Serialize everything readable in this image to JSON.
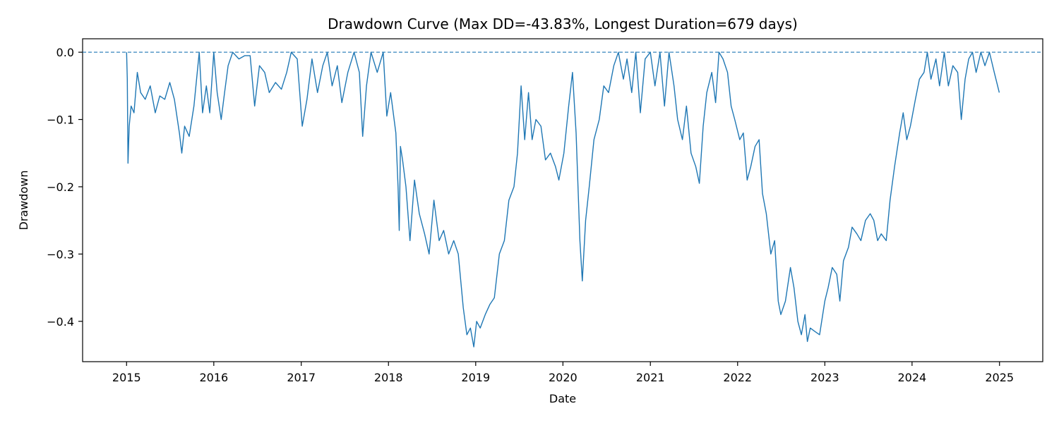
{
  "chart_data": {
    "type": "line",
    "title": "Drawdown Curve (Max DD=-43.83%, Longest Duration=679 days)",
    "xlabel": "Date",
    "ylabel": "Drawdown",
    "xlim": [
      "2014-07-01",
      "2025-07-01"
    ],
    "ylim": [
      -0.46,
      0.02
    ],
    "x_ticks": [
      "2015",
      "2016",
      "2017",
      "2018",
      "2019",
      "2020",
      "2021",
      "2022",
      "2023",
      "2024",
      "2025"
    ],
    "y_ticks": [
      "0.0",
      "−0.1",
      "−0.2",
      "−0.3",
      "−0.4"
    ],
    "y_tick_values": [
      0.0,
      -0.1,
      -0.2,
      -0.3,
      -0.4
    ],
    "grid": false,
    "line_color": "#1f77b4",
    "reference_line": {
      "y": 0.0,
      "style": "dashed",
      "color": "#1f77b4"
    },
    "series": [
      {
        "points": [
          [
            "2015-01-01",
            0.0
          ],
          [
            "2015-01-04",
            -0.04
          ],
          [
            "2015-01-07",
            -0.165
          ],
          [
            "2015-01-12",
            -0.11
          ],
          [
            "2015-01-20",
            -0.08
          ],
          [
            "2015-02-01",
            -0.09
          ],
          [
            "2015-02-15",
            -0.03
          ],
          [
            "2015-03-01",
            -0.06
          ],
          [
            "2015-03-20",
            -0.07
          ],
          [
            "2015-04-10",
            -0.05
          ],
          [
            "2015-05-01",
            -0.09
          ],
          [
            "2015-05-20",
            -0.065
          ],
          [
            "2015-06-10",
            -0.07
          ],
          [
            "2015-07-01",
            -0.045
          ],
          [
            "2015-07-20",
            -0.07
          ],
          [
            "2015-08-10",
            -0.12
          ],
          [
            "2015-08-20",
            -0.15
          ],
          [
            "2015-09-01",
            -0.11
          ],
          [
            "2015-09-20",
            -0.125
          ],
          [
            "2015-10-10",
            -0.08
          ],
          [
            "2015-11-01",
            0.0
          ],
          [
            "2015-11-15",
            -0.09
          ],
          [
            "2015-12-01",
            -0.05
          ],
          [
            "2015-12-15",
            -0.09
          ],
          [
            "2016-01-01",
            0.0
          ],
          [
            "2016-01-15",
            -0.06
          ],
          [
            "2016-02-01",
            -0.1
          ],
          [
            "2016-02-15",
            -0.06
          ],
          [
            "2016-03-01",
            -0.02
          ],
          [
            "2016-03-20",
            0.0
          ],
          [
            "2016-04-15",
            -0.01
          ],
          [
            "2016-05-10",
            -0.005
          ],
          [
            "2016-06-01",
            -0.005
          ],
          [
            "2016-06-20",
            -0.08
          ],
          [
            "2016-07-10",
            -0.02
          ],
          [
            "2016-08-01",
            -0.03
          ],
          [
            "2016-08-20",
            -0.06
          ],
          [
            "2016-09-15",
            -0.045
          ],
          [
            "2016-10-10",
            -0.055
          ],
          [
            "2016-11-01",
            -0.03
          ],
          [
            "2016-11-20",
            0.0
          ],
          [
            "2016-12-15",
            -0.01
          ],
          [
            "2017-01-05",
            -0.11
          ],
          [
            "2017-01-25",
            -0.07
          ],
          [
            "2017-02-15",
            -0.01
          ],
          [
            "2017-03-10",
            -0.06
          ],
          [
            "2017-04-01",
            -0.02
          ],
          [
            "2017-04-20",
            0.0
          ],
          [
            "2017-05-10",
            -0.05
          ],
          [
            "2017-06-01",
            -0.02
          ],
          [
            "2017-06-20",
            -0.075
          ],
          [
            "2017-07-15",
            -0.03
          ],
          [
            "2017-08-10",
            0.0
          ],
          [
            "2017-09-01",
            -0.03
          ],
          [
            "2017-09-15",
            -0.125
          ],
          [
            "2017-10-01",
            -0.05
          ],
          [
            "2017-10-20",
            0.0
          ],
          [
            "2017-11-15",
            -0.03
          ],
          [
            "2017-12-10",
            0.0
          ],
          [
            "2017-12-25",
            -0.095
          ],
          [
            "2018-01-10",
            -0.06
          ],
          [
            "2018-02-01",
            -0.12
          ],
          [
            "2018-02-10",
            -0.2
          ],
          [
            "2018-02-15",
            -0.265
          ],
          [
            "2018-02-20",
            -0.14
          ],
          [
            "2018-03-01",
            -0.16
          ],
          [
            "2018-03-15",
            -0.2
          ],
          [
            "2018-04-01",
            -0.28
          ],
          [
            "2018-04-20",
            -0.19
          ],
          [
            "2018-05-10",
            -0.24
          ],
          [
            "2018-06-01",
            -0.27
          ],
          [
            "2018-06-20",
            -0.3
          ],
          [
            "2018-07-10",
            -0.22
          ],
          [
            "2018-08-01",
            -0.28
          ],
          [
            "2018-08-20",
            -0.265
          ],
          [
            "2018-09-10",
            -0.3
          ],
          [
            "2018-10-01",
            -0.28
          ],
          [
            "2018-10-20",
            -0.3
          ],
          [
            "2018-11-10",
            -0.38
          ],
          [
            "2018-11-25",
            -0.42
          ],
          [
            "2018-12-10",
            -0.41
          ],
          [
            "2018-12-24",
            -0.438
          ],
          [
            "2019-01-05",
            -0.4
          ],
          [
            "2019-01-20",
            -0.41
          ],
          [
            "2019-02-10",
            -0.39
          ],
          [
            "2019-03-01",
            -0.375
          ],
          [
            "2019-03-20",
            -0.365
          ],
          [
            "2019-04-10",
            -0.3
          ],
          [
            "2019-05-01",
            -0.28
          ],
          [
            "2019-05-20",
            -0.22
          ],
          [
            "2019-06-10",
            -0.2
          ],
          [
            "2019-06-25",
            -0.15
          ],
          [
            "2019-07-10",
            -0.05
          ],
          [
            "2019-07-25",
            -0.13
          ],
          [
            "2019-08-10",
            -0.06
          ],
          [
            "2019-08-25",
            -0.13
          ],
          [
            "2019-09-10",
            -0.1
          ],
          [
            "2019-10-01",
            -0.11
          ],
          [
            "2019-10-20",
            -0.16
          ],
          [
            "2019-11-10",
            -0.15
          ],
          [
            "2019-12-01",
            -0.17
          ],
          [
            "2019-12-15",
            -0.19
          ],
          [
            "2020-01-05",
            -0.15
          ],
          [
            "2020-01-25",
            -0.08
          ],
          [
            "2020-02-10",
            -0.03
          ],
          [
            "2020-02-25",
            -0.12
          ],
          [
            "2020-03-12",
            -0.28
          ],
          [
            "2020-03-22",
            -0.34
          ],
          [
            "2020-04-05",
            -0.25
          ],
          [
            "2020-04-20",
            -0.2
          ],
          [
            "2020-05-10",
            -0.13
          ],
          [
            "2020-06-01",
            -0.1
          ],
          [
            "2020-06-20",
            -0.05
          ],
          [
            "2020-07-10",
            -0.06
          ],
          [
            "2020-08-01",
            -0.02
          ],
          [
            "2020-08-20",
            0.0
          ],
          [
            "2020-09-10",
            -0.04
          ],
          [
            "2020-09-25",
            -0.01
          ],
          [
            "2020-10-15",
            -0.06
          ],
          [
            "2020-11-01",
            0.0
          ],
          [
            "2020-11-20",
            -0.09
          ],
          [
            "2020-12-10",
            -0.01
          ],
          [
            "2021-01-01",
            0.0
          ],
          [
            "2021-01-20",
            -0.05
          ],
          [
            "2021-02-10",
            0.0
          ],
          [
            "2021-03-01",
            -0.08
          ],
          [
            "2021-03-20",
            0.0
          ],
          [
            "2021-04-10",
            -0.05
          ],
          [
            "2021-04-25",
            -0.1
          ],
          [
            "2021-05-15",
            -0.13
          ],
          [
            "2021-06-01",
            -0.08
          ],
          [
            "2021-06-20",
            -0.15
          ],
          [
            "2021-07-10",
            -0.17
          ],
          [
            "2021-07-25",
            -0.195
          ],
          [
            "2021-08-10",
            -0.11
          ],
          [
            "2021-08-25",
            -0.06
          ],
          [
            "2021-09-15",
            -0.03
          ],
          [
            "2021-10-01",
            -0.075
          ],
          [
            "2021-10-15",
            0.0
          ],
          [
            "2021-11-01",
            -0.01
          ],
          [
            "2021-11-20",
            -0.03
          ],
          [
            "2021-12-05",
            -0.08
          ],
          [
            "2021-12-20",
            -0.1
          ],
          [
            "2022-01-10",
            -0.13
          ],
          [
            "2022-01-25",
            -0.12
          ],
          [
            "2022-02-10",
            -0.19
          ],
          [
            "2022-02-25",
            -0.17
          ],
          [
            "2022-03-15",
            -0.14
          ],
          [
            "2022-04-01",
            -0.13
          ],
          [
            "2022-04-15",
            -0.21
          ],
          [
            "2022-05-01",
            -0.24
          ],
          [
            "2022-05-20",
            -0.3
          ],
          [
            "2022-06-05",
            -0.28
          ],
          [
            "2022-06-20",
            -0.37
          ],
          [
            "2022-07-01",
            -0.39
          ],
          [
            "2022-07-20",
            -0.37
          ],
          [
            "2022-08-10",
            -0.32
          ],
          [
            "2022-08-25",
            -0.35
          ],
          [
            "2022-09-10",
            -0.4
          ],
          [
            "2022-09-25",
            -0.42
          ],
          [
            "2022-10-10",
            -0.39
          ],
          [
            "2022-10-20",
            -0.43
          ],
          [
            "2022-11-01",
            -0.41
          ],
          [
            "2022-11-20",
            -0.415
          ],
          [
            "2022-12-10",
            -0.42
          ],
          [
            "2023-01-01",
            -0.37
          ],
          [
            "2023-01-15",
            -0.35
          ],
          [
            "2023-02-01",
            -0.32
          ],
          [
            "2023-02-20",
            -0.33
          ],
          [
            "2023-03-05",
            -0.37
          ],
          [
            "2023-03-20",
            -0.31
          ],
          [
            "2023-04-10",
            -0.29
          ],
          [
            "2023-04-25",
            -0.26
          ],
          [
            "2023-05-15",
            -0.27
          ],
          [
            "2023-06-01",
            -0.28
          ],
          [
            "2023-06-20",
            -0.25
          ],
          [
            "2023-07-10",
            -0.24
          ],
          [
            "2023-07-25",
            -0.25
          ],
          [
            "2023-08-10",
            -0.28
          ],
          [
            "2023-08-25",
            -0.27
          ],
          [
            "2023-09-15",
            -0.28
          ],
          [
            "2023-10-01",
            -0.22
          ],
          [
            "2023-10-20",
            -0.17
          ],
          [
            "2023-11-10",
            -0.12
          ],
          [
            "2023-11-25",
            -0.09
          ],
          [
            "2023-12-10",
            -0.13
          ],
          [
            "2023-12-25",
            -0.11
          ],
          [
            "2024-01-15",
            -0.07
          ],
          [
            "2024-02-01",
            -0.04
          ],
          [
            "2024-02-20",
            -0.03
          ],
          [
            "2024-03-05",
            0.0
          ],
          [
            "2024-03-20",
            -0.04
          ],
          [
            "2024-04-10",
            -0.01
          ],
          [
            "2024-04-25",
            -0.05
          ],
          [
            "2024-05-15",
            0.0
          ],
          [
            "2024-06-01",
            -0.05
          ],
          [
            "2024-06-20",
            -0.02
          ],
          [
            "2024-07-10",
            -0.03
          ],
          [
            "2024-07-25",
            -0.1
          ],
          [
            "2024-08-10",
            -0.04
          ],
          [
            "2024-08-25",
            -0.01
          ],
          [
            "2024-09-10",
            0.0
          ],
          [
            "2024-09-25",
            -0.03
          ],
          [
            "2024-10-15",
            0.0
          ],
          [
            "2024-11-01",
            -0.02
          ],
          [
            "2024-11-20",
            0.0
          ],
          [
            "2024-12-10",
            -0.03
          ],
          [
            "2024-12-31",
            -0.06
          ]
        ]
      }
    ]
  }
}
